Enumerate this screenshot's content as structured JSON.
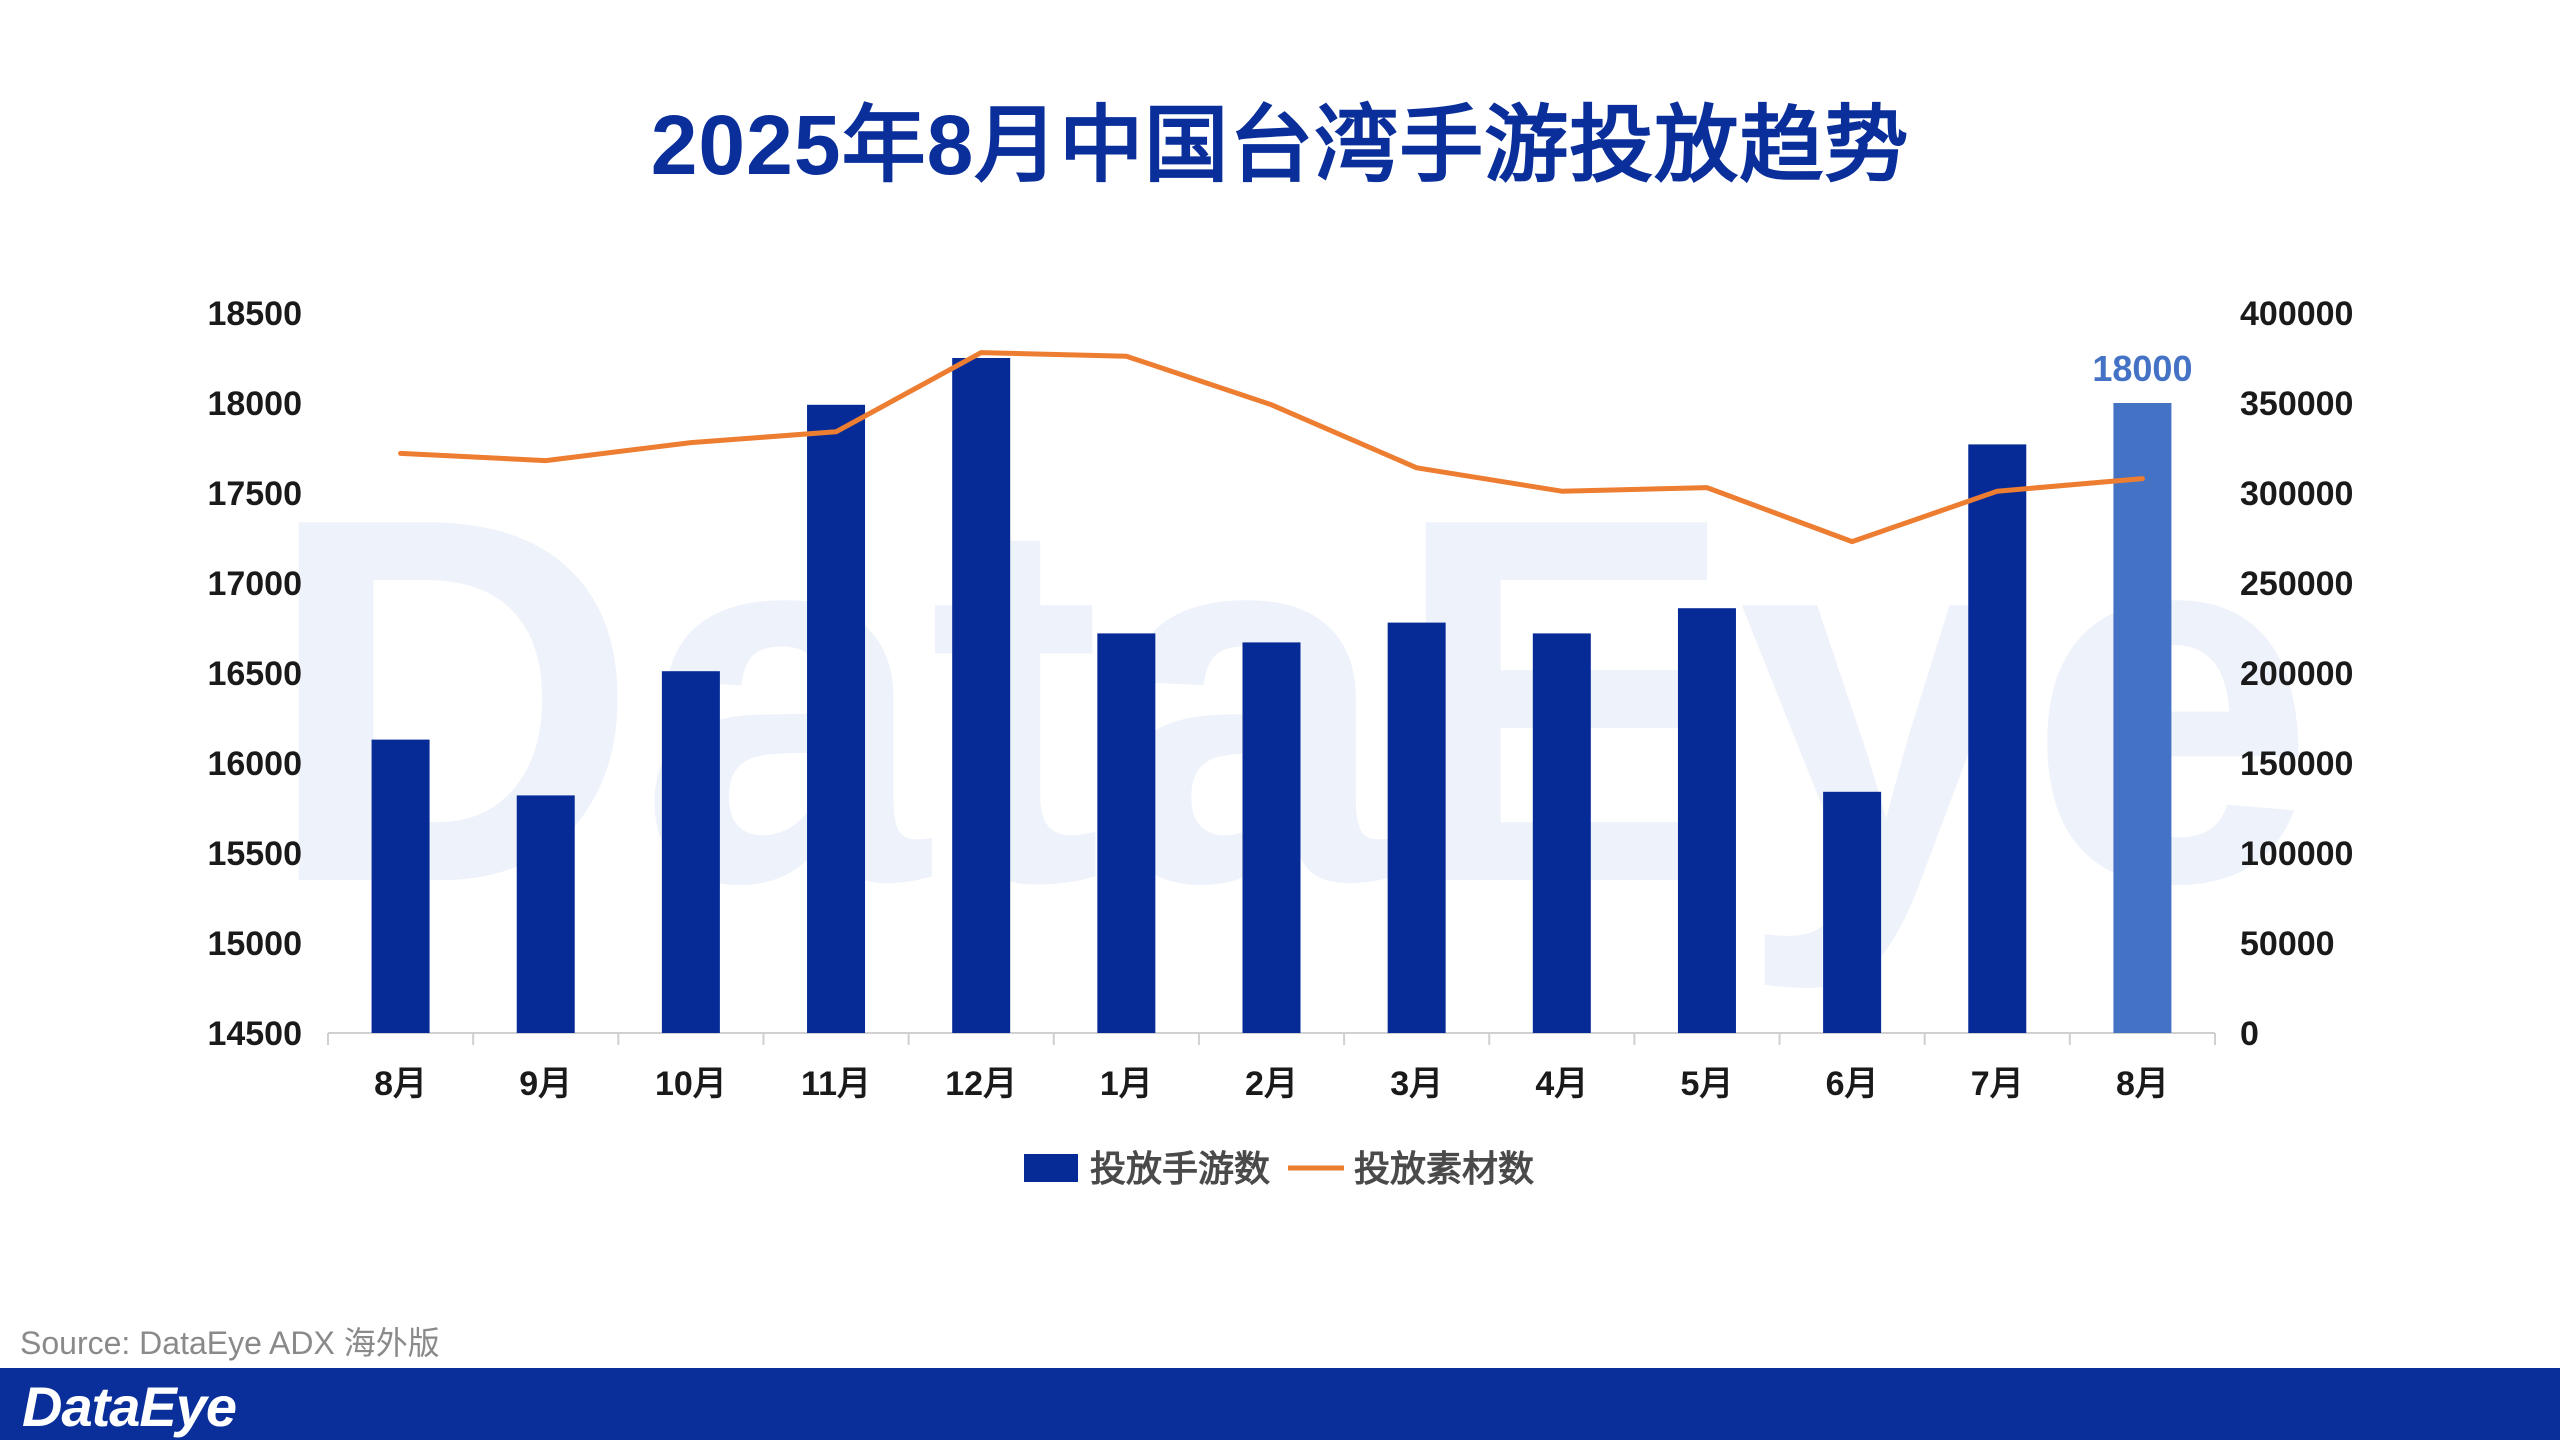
{
  "title": "2025年8月中国台湾手游投放趋势",
  "source": "Source: DataEye ADX 海外版",
  "footer_logo": "DataEye",
  "watermark": "DataEye",
  "colors": {
    "title": "#0a2f9b",
    "bar": "#062b97",
    "bar_highlight": "#4472c4",
    "line": "#ed7d31",
    "footer": "#0a2f9b"
  },
  "chart_data": {
    "type": "bar",
    "categories": [
      "8月",
      "9月",
      "10月",
      "11月",
      "12月",
      "1月",
      "2月",
      "3月",
      "4月",
      "5月",
      "6月",
      "7月",
      "8月"
    ],
    "series": [
      {
        "name": "投放手游数",
        "type": "bar",
        "axis": "left",
        "values": [
          16130,
          15820,
          16510,
          17990,
          18250,
          16720,
          16670,
          16780,
          16720,
          16860,
          15840,
          17770,
          18000
        ]
      },
      {
        "name": "投放素材数",
        "type": "line",
        "axis": "right",
        "values": [
          322000,
          318000,
          328000,
          334000,
          378000,
          376000,
          349000,
          314000,
          301000,
          303000,
          273000,
          301000,
          308000
        ]
      }
    ],
    "highlight_index": 12,
    "data_labels": [
      {
        "index": 12,
        "text": "18000"
      }
    ],
    "y_left": {
      "min": 14500,
      "max": 18500,
      "ticks": [
        "14500",
        "15000",
        "15500",
        "16000",
        "16500",
        "17000",
        "17500",
        "18000",
        "18500"
      ]
    },
    "y_right": {
      "min": 0,
      "max": 400000,
      "ticks": [
        "0",
        "50000",
        "100000",
        "150000",
        "200000",
        "250000",
        "300000",
        "350000",
        "400000"
      ]
    },
    "grid": false,
    "legend_position": "bottom"
  }
}
